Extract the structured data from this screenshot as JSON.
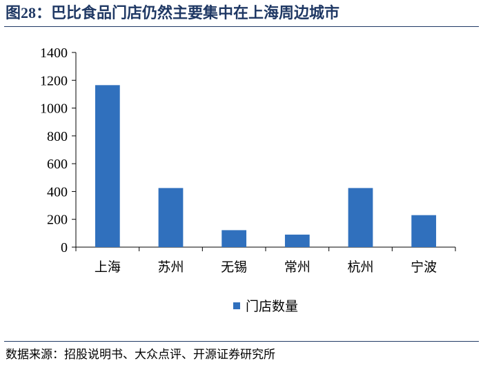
{
  "title": "图28：巴比食品门店仍然主要集中在上海周边城市",
  "source": "数据来源：招股说明书、大众点评、开源证券研究所",
  "chart_data": {
    "type": "bar",
    "categories": [
      "上海",
      "苏州",
      "无锡",
      "常州",
      "杭州",
      "宁波"
    ],
    "series": [
      {
        "name": "门店数量",
        "values": [
          1165,
          425,
          122,
          90,
          425,
          230
        ],
        "color": "#3070bd"
      }
    ],
    "ylim": [
      0,
      1400
    ],
    "yticks": [
      0,
      200,
      400,
      600,
      800,
      1000,
      1200,
      1400
    ],
    "grid": false,
    "legend": "bottom"
  }
}
